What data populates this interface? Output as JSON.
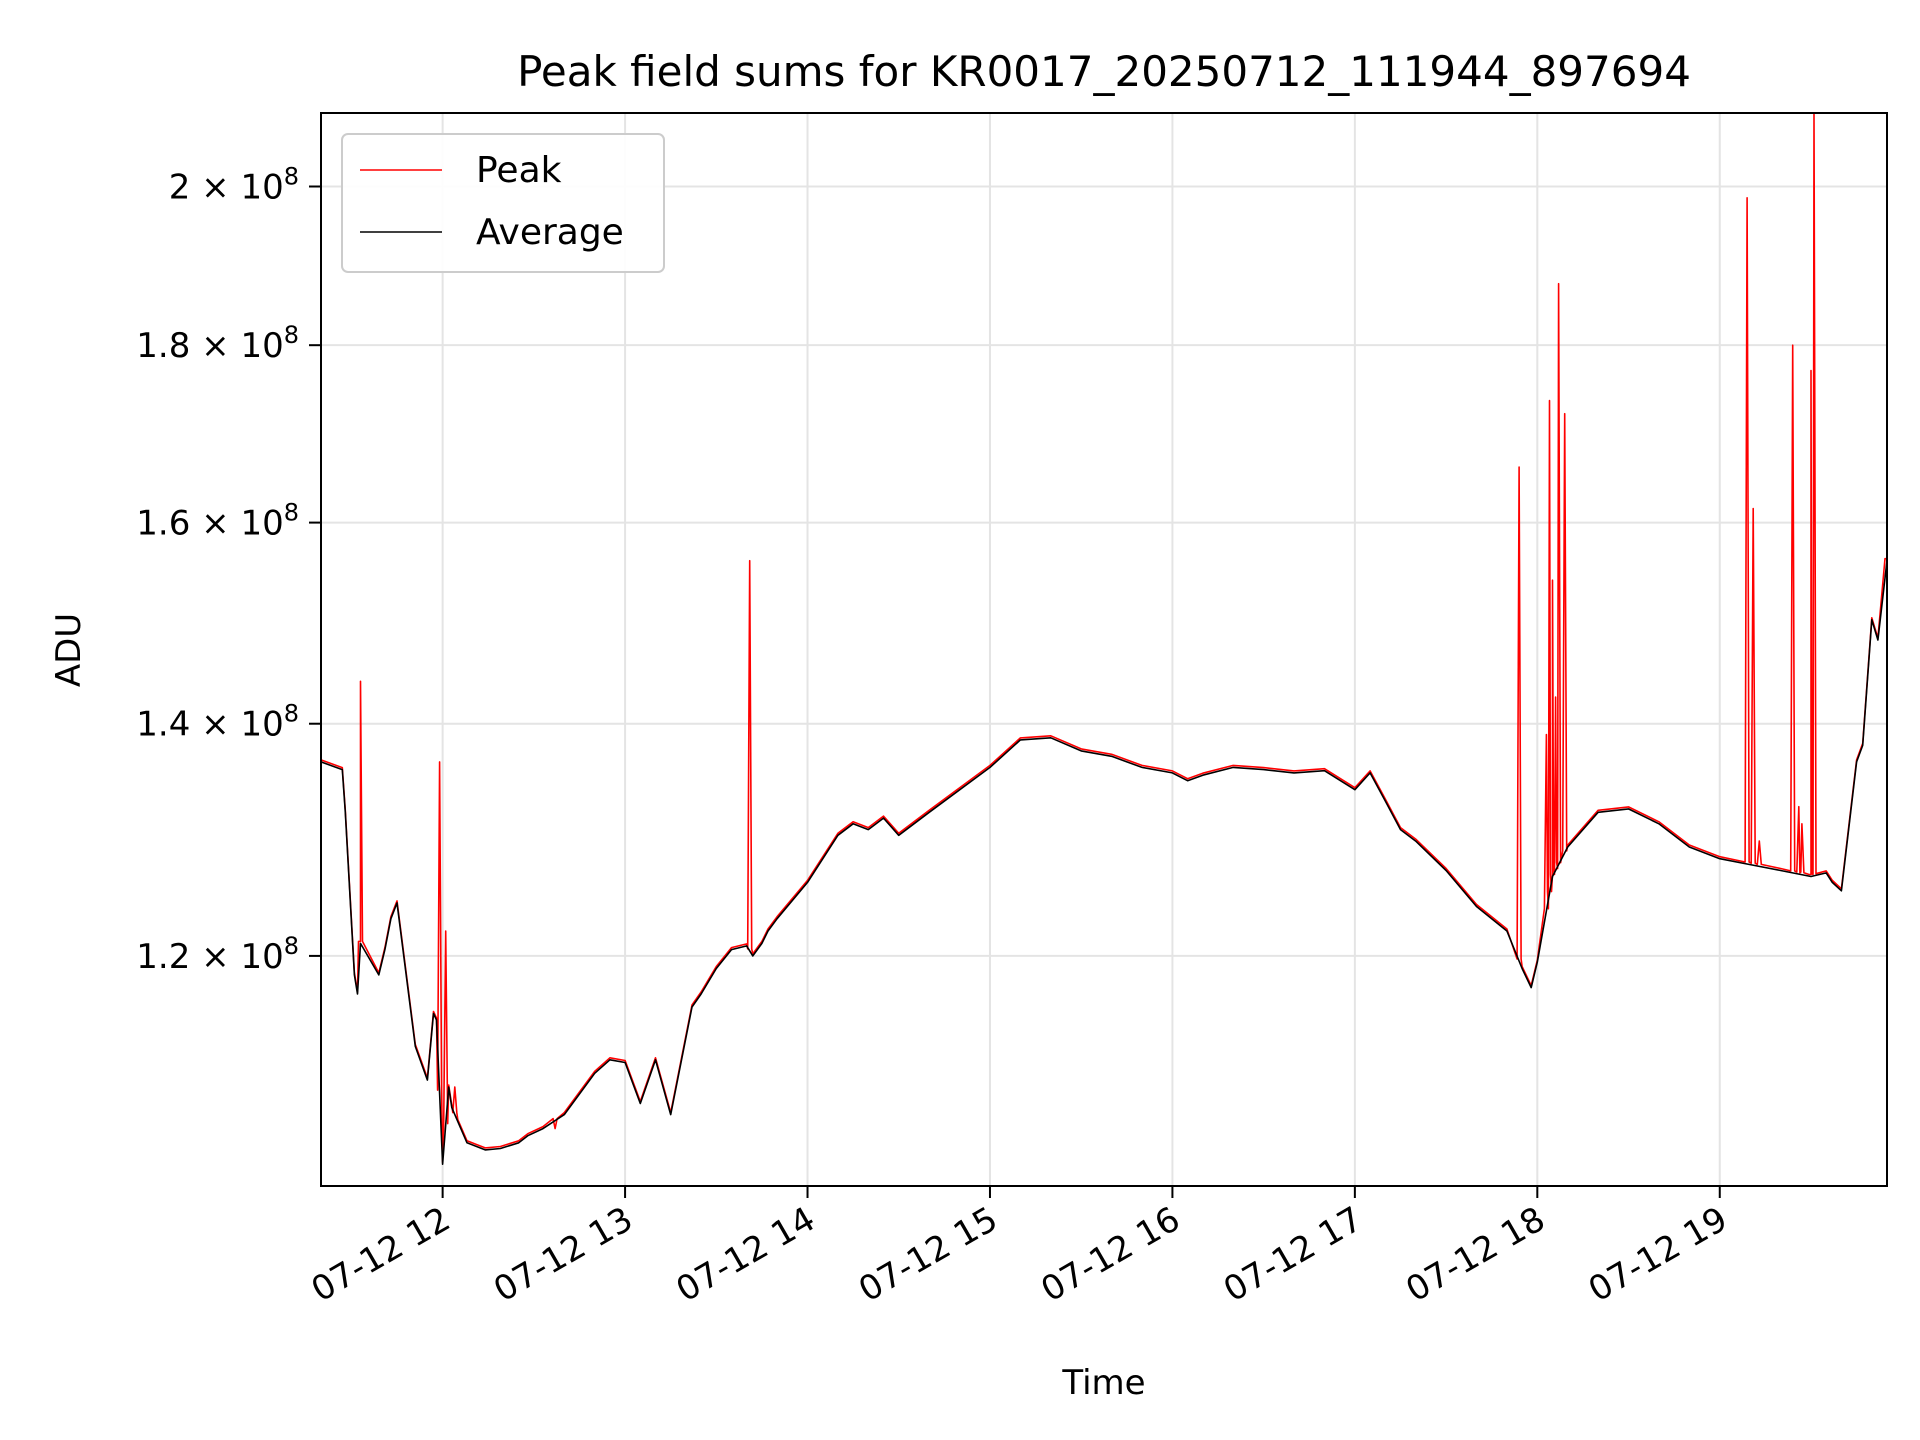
{
  "chart_data": {
    "type": "line",
    "title": "Peak field sums for KR0017_20250712_111944_897694",
    "xlabel": "Time",
    "ylabel": "ADU",
    "y_scale": "log",
    "ylim": [
      103000000,
      210000000
    ],
    "xlim": [
      "2025-07-12 11:20",
      "2025-07-12 19:55"
    ],
    "grid": true,
    "legend_position": "top-left",
    "x_ticks": [
      {
        "value": "2025-07-12 12:00",
        "label": "07-12 12"
      },
      {
        "value": "2025-07-12 13:00",
        "label": "07-12 13"
      },
      {
        "value": "2025-07-12 14:00",
        "label": "07-12 14"
      },
      {
        "value": "2025-07-12 15:00",
        "label": "07-12 15"
      },
      {
        "value": "2025-07-12 16:00",
        "label": "07-12 16"
      },
      {
        "value": "2025-07-12 17:00",
        "label": "07-12 17"
      },
      {
        "value": "2025-07-12 18:00",
        "label": "07-12 18"
      },
      {
        "value": "2025-07-12 19:00",
        "label": "07-12 19"
      }
    ],
    "y_ticks": [
      {
        "value": 120000000,
        "base": "1.2",
        "exp": "8"
      },
      {
        "value": 140000000,
        "base": "1.4",
        "exp": "8"
      },
      {
        "value": 160000000,
        "base": "1.6",
        "exp": "8"
      },
      {
        "value": 180000000,
        "base": "1.8",
        "exp": "8"
      },
      {
        "value": 200000000,
        "base": "2",
        "exp": "8"
      }
    ],
    "series": [
      {
        "name": "Average",
        "color": "#000000",
        "x": [
          "2025-07-12 11:20",
          "2025-07-12 11:27",
          "2025-07-12 11:28",
          "2025-07-12 11:31",
          "2025-07-12 11:32",
          "2025-07-12 11:33",
          "2025-07-12 11:39",
          "2025-07-12 11:41",
          "2025-07-12 11:43",
          "2025-07-12 11:45",
          "2025-07-12 11:51",
          "2025-07-12 11:55",
          "2025-07-12 11:57",
          "2025-07-12 11:58",
          "2025-07-12 12:00",
          "2025-07-12 12:02",
          "2025-07-12 12:03",
          "2025-07-12 12:05",
          "2025-07-12 12:08",
          "2025-07-12 12:14",
          "2025-07-12 12:19",
          "2025-07-12 12:25",
          "2025-07-12 12:28",
          "2025-07-12 12:33",
          "2025-07-12 12:40",
          "2025-07-12 12:50",
          "2025-07-12 12:55",
          "2025-07-12 13:00",
          "2025-07-12 13:05",
          "2025-07-12 13:10",
          "2025-07-12 13:15",
          "2025-07-12 13:22",
          "2025-07-12 13:25",
          "2025-07-12 13:30",
          "2025-07-12 13:35",
          "2025-07-12 13:40",
          "2025-07-12 13:42",
          "2025-07-12 13:45",
          "2025-07-12 13:47",
          "2025-07-12 13:50",
          "2025-07-12 14:00",
          "2025-07-12 14:10",
          "2025-07-12 14:15",
          "2025-07-12 14:20",
          "2025-07-12 14:25",
          "2025-07-12 14:30",
          "2025-07-12 14:40",
          "2025-07-12 15:00",
          "2025-07-12 15:10",
          "2025-07-12 15:20",
          "2025-07-12 15:30",
          "2025-07-12 15:40",
          "2025-07-12 15:50",
          "2025-07-12 16:00",
          "2025-07-12 16:05",
          "2025-07-12 16:10",
          "2025-07-12 16:20",
          "2025-07-12 16:30",
          "2025-07-12 16:40",
          "2025-07-12 16:50",
          "2025-07-12 17:00",
          "2025-07-12 17:05",
          "2025-07-12 17:10",
          "2025-07-12 17:15",
          "2025-07-12 17:20",
          "2025-07-12 17:30",
          "2025-07-12 17:40",
          "2025-07-12 17:50",
          "2025-07-12 17:55",
          "2025-07-12 17:58",
          "2025-07-12 18:00",
          "2025-07-12 18:05",
          "2025-07-12 18:10",
          "2025-07-12 18:20",
          "2025-07-12 18:30",
          "2025-07-12 18:40",
          "2025-07-12 18:50",
          "2025-07-12 19:00",
          "2025-07-12 19:10",
          "2025-07-12 19:20",
          "2025-07-12 19:30",
          "2025-07-12 19:35",
          "2025-07-12 19:37",
          "2025-07-12 19:40",
          "2025-07-12 19:45",
          "2025-07-12 19:47",
          "2025-07-12 19:50",
          "2025-07-12 19:52",
          "2025-07-12 19:55"
        ],
        "y": [
          136500000,
          135800000,
          132000000,
          118500000,
          117000000,
          121000000,
          118500000,
          120500000,
          123000000,
          124300000,
          113000000,
          110500000,
          115500000,
          115000000,
          104500000,
          110000000,
          108500000,
          107500000,
          106000000,
          105500000,
          105600000,
          106000000,
          106500000,
          107000000,
          108000000,
          111000000,
          112000000,
          111800000,
          108800000,
          112000000,
          108000000,
          116000000,
          117000000,
          119000000,
          120500000,
          120800000,
          120000000,
          121000000,
          122000000,
          123000000,
          126000000,
          130000000,
          131000000,
          130500000,
          131500000,
          130000000,
          132000000,
          136000000,
          138500000,
          138700000,
          137500000,
          137000000,
          136000000,
          135500000,
          134800000,
          135300000,
          136000000,
          135800000,
          135500000,
          135700000,
          134000000,
          135500000,
          133000000,
          130500000,
          129500000,
          127000000,
          124000000,
          122000000,
          119000000,
          117500000,
          119500000,
          126500000,
          129000000,
          132000000,
          132300000,
          131000000,
          129000000,
          128000000,
          127500000,
          127000000,
          126500000,
          126800000,
          126000000,
          125300000,
          136500000,
          138000000,
          150000000,
          148000000,
          156000000
        ]
      },
      {
        "name": "Peak",
        "color": "#ff0000",
        "spikes": [
          {
            "x": "2025-07-12 11:33",
            "y": 144000000
          },
          {
            "x": "2025-07-12 11:59",
            "y": 136500000
          },
          {
            "x": "2025-07-12 12:01",
            "y": 122000000
          },
          {
            "x": "2025-07-12 12:04",
            "y": 110000000
          },
          {
            "x": "2025-07-12 12:37",
            "y": 107000000
          },
          {
            "x": "2025-07-12 13:41",
            "y": 156000000
          },
          {
            "x": "2025-07-12 17:54",
            "y": 166000000
          },
          {
            "x": "2025-07-12 18:03",
            "y": 139000000
          },
          {
            "x": "2025-07-12 18:04",
            "y": 173500000
          },
          {
            "x": "2025-07-12 18:05",
            "y": 154000000
          },
          {
            "x": "2025-07-12 18:06",
            "y": 142500000
          },
          {
            "x": "2025-07-12 18:07",
            "y": 187500000
          },
          {
            "x": "2025-07-12 18:09",
            "y": 172000000
          },
          {
            "x": "2025-07-12 19:09",
            "y": 198500000
          },
          {
            "x": "2025-07-12 19:11",
            "y": 161500000
          },
          {
            "x": "2025-07-12 19:13",
            "y": 129500000
          },
          {
            "x": "2025-07-12 19:24",
            "y": 180000000
          },
          {
            "x": "2025-07-12 19:26",
            "y": 132500000
          },
          {
            "x": "2025-07-12 19:27",
            "y": 131000000
          },
          {
            "x": "2025-07-12 19:30",
            "y": 177000000
          },
          {
            "x": "2025-07-12 19:31",
            "y": 210000000
          },
          {
            "x": "2025-07-12 19:55",
            "y": 156000000
          }
        ]
      }
    ]
  }
}
